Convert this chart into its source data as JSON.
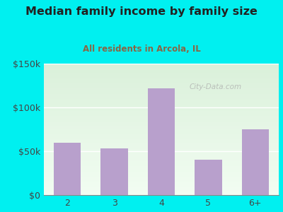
{
  "title": "Median family income by family size",
  "subtitle": "All residents in Arcola, IL",
  "categories": [
    "2",
    "3",
    "4",
    "5",
    "6+"
  ],
  "values": [
    60000,
    53000,
    122000,
    40000,
    75000
  ],
  "bar_color": "#b8a0cc",
  "background_outer": "#00f0f0",
  "grad_top_left": "#c8eec8",
  "grad_top_right": "#e8f8e8",
  "grad_bottom_left": "#e0f5e0",
  "grad_bottom_right": "#f5fff5",
  "title_color": "#222222",
  "subtitle_color": "#886644",
  "tick_color": "#444444",
  "ylim": [
    0,
    150000
  ],
  "yticks": [
    0,
    50000,
    100000,
    150000
  ],
  "ytick_labels": [
    "$0",
    "$50k",
    "$100k",
    "$150k"
  ],
  "watermark": "City-Data.com"
}
